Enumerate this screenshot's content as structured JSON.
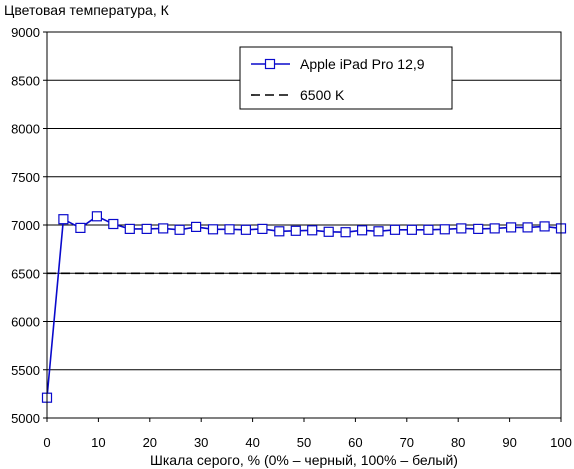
{
  "chart_data": {
    "type": "line",
    "title": "",
    "ylabel": "Цветовая температура, К",
    "xlabel": "Шкала серого, % (0% – черный, 100% – белый)",
    "xlim": [
      0,
      100
    ],
    "ylim": [
      5000,
      9000
    ],
    "xticks": [
      0,
      10,
      20,
      30,
      40,
      50,
      60,
      70,
      80,
      90,
      100
    ],
    "yticks": [
      5000,
      5500,
      6000,
      6500,
      7000,
      7500,
      8000,
      8500,
      9000
    ],
    "grid": "horizontal",
    "legend_position": "top-right",
    "series": [
      {
        "name": "Apple iPad Pro 12,9",
        "color": "#0a0acc",
        "marker": "square",
        "x": [
          0,
          3.2,
          6.5,
          9.7,
          12.9,
          16.1,
          19.4,
          22.6,
          25.8,
          29.0,
          32.3,
          35.5,
          38.7,
          41.9,
          45.2,
          48.4,
          51.6,
          54.8,
          58.1,
          61.3,
          64.5,
          67.7,
          71.0,
          74.2,
          77.4,
          80.6,
          83.9,
          87.1,
          90.3,
          93.5,
          96.8,
          100
        ],
        "y": [
          5210,
          7060,
          6970,
          7090,
          7010,
          6960,
          6960,
          6965,
          6950,
          6980,
          6955,
          6955,
          6950,
          6960,
          6935,
          6940,
          6945,
          6930,
          6925,
          6945,
          6935,
          6950,
          6950,
          6950,
          6955,
          6965,
          6960,
          6965,
          6975,
          6975,
          6985,
          6965
        ]
      },
      {
        "name": "6500 K",
        "color": "#000000",
        "style": "dashed",
        "x": [
          0,
          100
        ],
        "y": [
          6500,
          6500
        ]
      }
    ]
  }
}
